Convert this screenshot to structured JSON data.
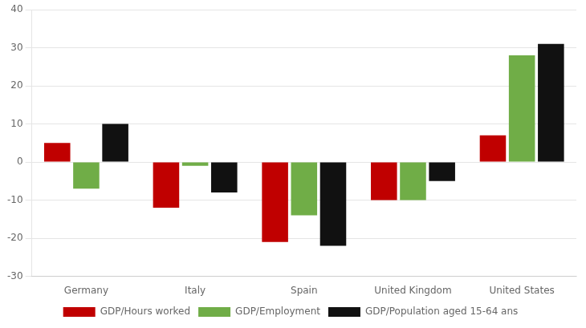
{
  "chart_data": {
    "type": "bar",
    "categories": [
      "Germany",
      "Italy",
      "Spain",
      "United Kingdom",
      "United States"
    ],
    "series": [
      {
        "name": "GDP/Hours worked",
        "color": "#c00000",
        "values": [
          5,
          -12,
          -21,
          -10,
          7
        ]
      },
      {
        "name": "GDP/Employment",
        "color": "#70ad47",
        "values": [
          -7,
          -1,
          -14,
          -10,
          28
        ]
      },
      {
        "name": "GDP/Population aged 15-64 ans",
        "color": "#111111",
        "values": [
          10,
          -8,
          -22,
          -5,
          31
        ]
      }
    ],
    "ylim": [
      -30,
      40
    ],
    "yticks": [
      -30,
      -20,
      -10,
      0,
      10,
      20,
      30,
      40
    ],
    "grid": true,
    "legend": "bottom"
  }
}
